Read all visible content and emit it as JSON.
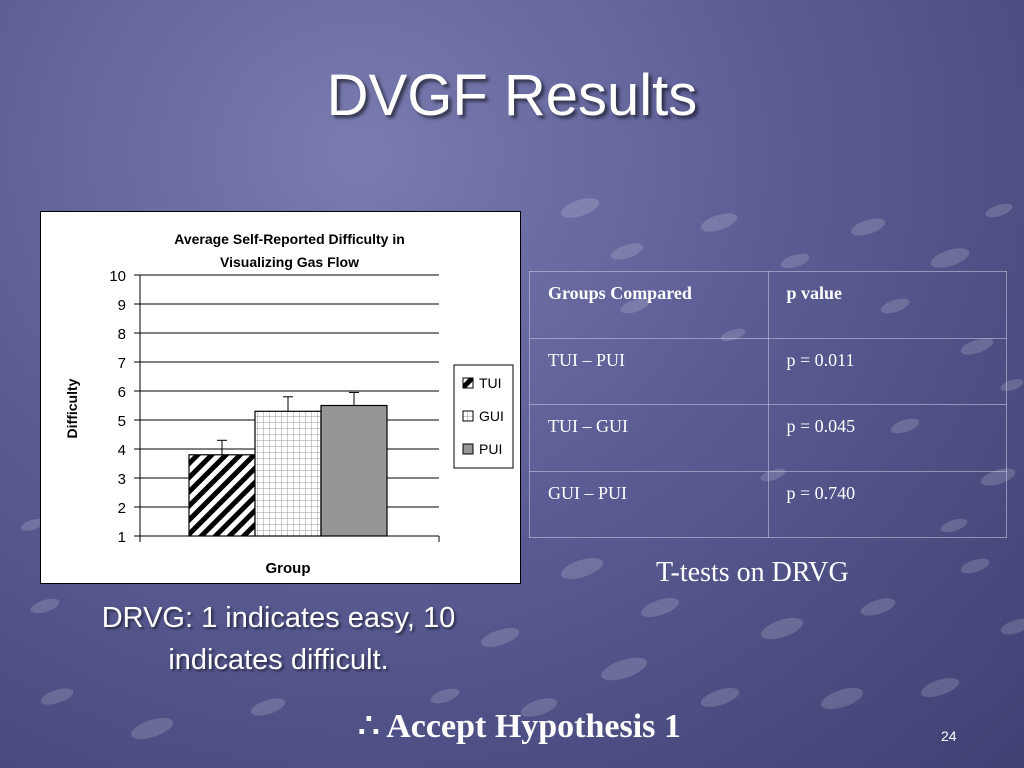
{
  "slide": {
    "title": "DVGF Results",
    "number": "24"
  },
  "chart_data": {
    "type": "bar",
    "title_lines": [
      "Average Self-Reported Difficulty in",
      "Visualizing Gas Flow"
    ],
    "xlabel": "Group",
    "ylabel": "Difficulty",
    "ylim": [
      1,
      10
    ],
    "yticks": [
      "1",
      "2",
      "3",
      "4",
      "5",
      "6",
      "7",
      "8",
      "9",
      "10"
    ],
    "grid": true,
    "legend_position": "right",
    "series": [
      {
        "name": "TUI",
        "value": 3.8,
        "error": 0.5,
        "pattern": "diagonal-hatch"
      },
      {
        "name": "GUI",
        "value": 5.3,
        "error": 0.5,
        "pattern": "grid"
      },
      {
        "name": "PUI",
        "value": 5.5,
        "error": 0.45,
        "pattern": "solid",
        "color": "#969696"
      }
    ]
  },
  "ttest_table": {
    "headers": [
      "Groups Compared",
      "p value"
    ],
    "rows": [
      [
        "TUI – PUI",
        "p = 0.011"
      ],
      [
        "TUI – GUI",
        "p = 0.045"
      ],
      [
        "GUI – PUI",
        "p = 0.740"
      ]
    ],
    "caption": "T-tests on DRVG"
  },
  "notes": {
    "drvg_line1": "DRVG: 1 indicates easy, 10",
    "drvg_line2": "indicates difficult.",
    "conclusion": "∴ Accept Hypothesis 1"
  }
}
